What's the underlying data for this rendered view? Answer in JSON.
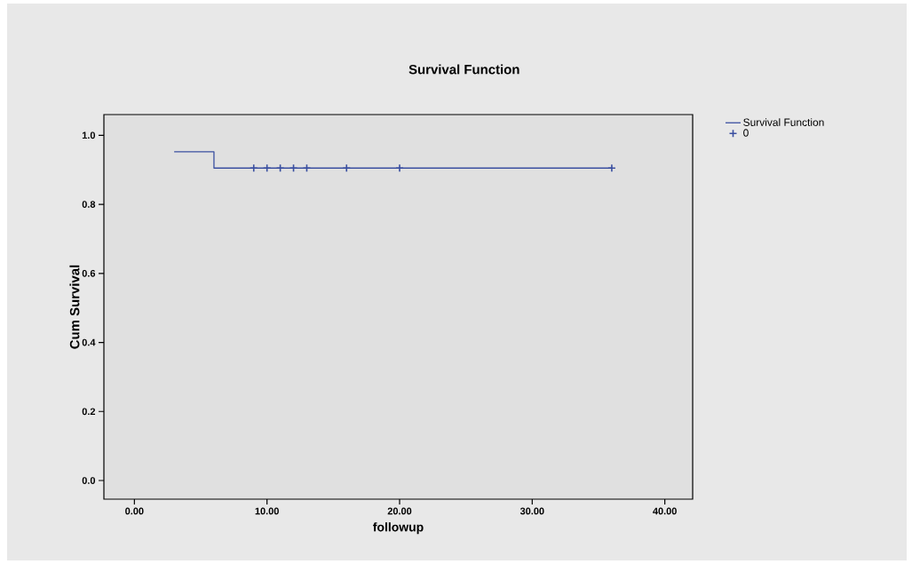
{
  "chart_data": {
    "type": "step",
    "title": "Survival Function",
    "xlabel": "followup",
    "ylabel": "Cum Survival",
    "series": [
      {
        "name": "Survival Function",
        "color": "#3a4fa0",
        "x": [
          3,
          6,
          36
        ],
        "values": [
          0.952,
          0.905,
          0.905
        ]
      },
      {
        "name": "0",
        "type": "scatter",
        "marker": "cross",
        "color": "#3a4fa0",
        "x": [
          9,
          10,
          11,
          12,
          13,
          16,
          20,
          36
        ],
        "values": [
          0.905,
          0.905,
          0.905,
          0.905,
          0.905,
          0.905,
          0.905,
          0.905
        ]
      }
    ],
    "xlim": [
      -2.3,
      42.1
    ],
    "ylim": [
      -0.054,
      1.06
    ],
    "xticks": [
      {
        "value": 0,
        "label": "0.00"
      },
      {
        "value": 10,
        "label": "10.00"
      },
      {
        "value": 20,
        "label": "20.00"
      },
      {
        "value": 30,
        "label": "30.00"
      },
      {
        "value": 40,
        "label": "40.00"
      }
    ],
    "yticks": [
      {
        "value": 0,
        "label": "0.0"
      },
      {
        "value": 0.2,
        "label": "0.2"
      },
      {
        "value": 0.4,
        "label": "0.4"
      },
      {
        "value": 0.6,
        "label": "0.6"
      },
      {
        "value": 0.8,
        "label": "0.8"
      },
      {
        "value": 1,
        "label": "1.0"
      }
    ],
    "grid": false,
    "legend": "top right"
  }
}
